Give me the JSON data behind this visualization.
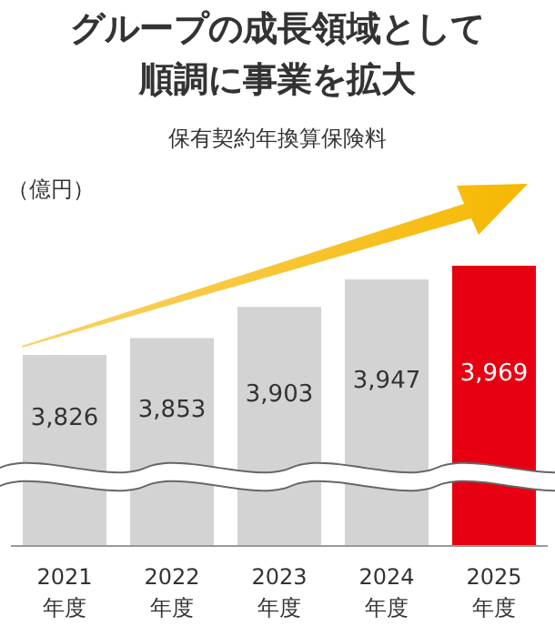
{
  "chart_data": {
    "type": "bar",
    "title": "グループの成長領域として順調に事業を拡大",
    "subtitle": "保有契約年換算保険料",
    "annotations": [
      "（億円）"
    ],
    "ylim": [
      3520,
      3969
    ],
    "categories": [
      "2021\n年度",
      "2022\n年度",
      "2023\n年度",
      "2024\n年度",
      "2025\n年度"
    ],
    "values": [
      3826,
      3853,
      3903,
      3947,
      3969
    ],
    "colors": [
      "#d3d3d3",
      "#d3d3d3",
      "#d3d3d3",
      "#d3d3d3",
      "#e60012"
    ],
    "value_labels": [
      "3,826",
      "3,853",
      "3,903",
      "3,947",
      "3,969"
    ]
  }
}
